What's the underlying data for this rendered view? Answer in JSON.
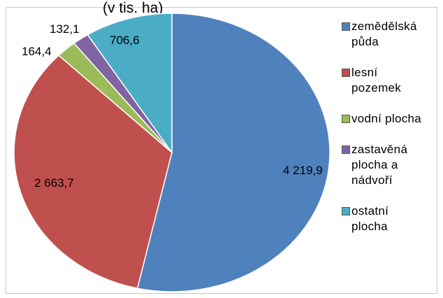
{
  "chart_data": {
    "type": "pie",
    "title": "(v tis. ha)",
    "start_angle_deg": 0,
    "direction": "clockwise",
    "slices": [
      {
        "label": "zemědělská\npůda",
        "value": 4219.9,
        "value_label": "4 219,9",
        "color": "#4f81bd"
      },
      {
        "label": "lesní\npozemek",
        "value": 2663.7,
        "value_label": "2 663,7",
        "color": "#c0504d"
      },
      {
        "label": "vodní plocha",
        "value": 164.4,
        "value_label": "164,4",
        "color": "#9bbb59"
      },
      {
        "label": "zastavěná\nplocha a\nnádvoří",
        "value": 132.1,
        "value_label": "132,1",
        "color": "#8064a2"
      },
      {
        "label": "ostatní\nplocha",
        "value": 706.6,
        "value_label": "706,6",
        "color": "#4bacc6"
      }
    ],
    "legend_position": "right"
  }
}
